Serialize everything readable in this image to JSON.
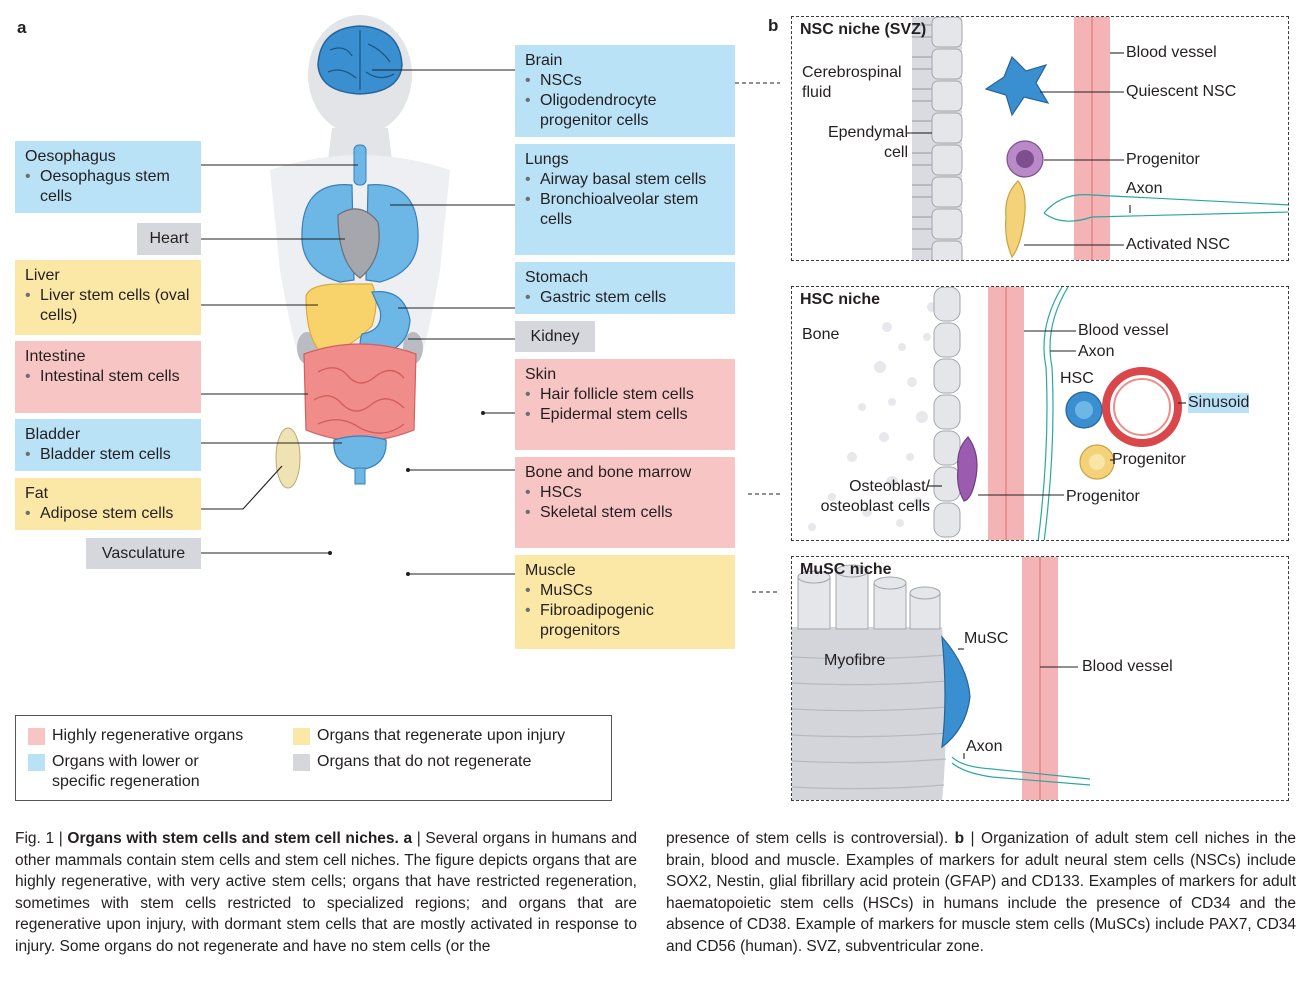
{
  "panel_a_label": "a",
  "panel_b_label": "b",
  "colors": {
    "highly_regenerative": "#f7c5c4",
    "lower_regeneration": "#b9e2f7",
    "regenerate_upon_injury": "#fbe7a6",
    "do_not_regenerate": "#d6d7dd"
  },
  "organs": {
    "oesophagus": {
      "title": "Oesophagus",
      "items": [
        "Oesophagus stem cells"
      ]
    },
    "heart": {
      "title": "Heart"
    },
    "liver": {
      "title": "Liver",
      "items": [
        "Liver stem cells (oval cells)"
      ]
    },
    "intestine": {
      "title": "Intestine",
      "items": [
        "Intestinal stem cells"
      ]
    },
    "bladder": {
      "title": "Bladder",
      "items": [
        "Bladder stem cells"
      ]
    },
    "fat": {
      "title": "Fat",
      "items": [
        "Adipose stem cells"
      ]
    },
    "vasculature": {
      "title": "Vasculature"
    },
    "brain": {
      "title": "Brain",
      "items": [
        "NSCs",
        "Oligodendrocyte progenitor cells"
      ]
    },
    "lungs": {
      "title": "Lungs",
      "items": [
        "Airway basal stem cells",
        "Bronchioalveolar stem cells"
      ]
    },
    "stomach": {
      "title": "Stomach",
      "items": [
        "Gastric stem cells"
      ]
    },
    "kidney": {
      "title": "Kidney"
    },
    "skin": {
      "title": "Skin",
      "items": [
        "Hair follicle stem cells",
        "Epidermal stem cells"
      ]
    },
    "bone": {
      "title": "Bone and bone marrow",
      "items": [
        "HSCs",
        "Skeletal stem cells"
      ]
    },
    "muscle": {
      "title": "Muscle",
      "items": [
        "MuSCs",
        "Fibroadipogenic progenitors"
      ]
    }
  },
  "legend": {
    "highly": "Highly regenerative organs",
    "injury": "Organs that regenerate upon injury",
    "lower": "Organs with lower or specific regeneration",
    "none": "Organs that do not regenerate"
  },
  "nsc_niche": {
    "title": "NSC niche (SVZ)",
    "csf": "Cerebrospinal fluid",
    "ependymal": "Ependymal cell",
    "blood_vessel": "Blood vessel",
    "quiescent": "Quiescent NSC",
    "progenitor": "Progenitor",
    "axon": "Axon",
    "activated": "Activated NSC"
  },
  "hsc_niche": {
    "title": "HSC niche",
    "bone": "Bone",
    "blood_vessel": "Blood vessel",
    "axon": "Axon",
    "hsc": "HSC",
    "sinusoid": "Sinusoid",
    "progenitor1": "Progenitor",
    "progenitor2": "Progenitor",
    "osteoblast": "Osteoblast/ osteoblast cells"
  },
  "musc_niche": {
    "title": "MuSC niche",
    "myofibre": "Myofibre",
    "musc": "MuSC",
    "blood_vessel": "Blood vessel",
    "axon": "Axon"
  },
  "caption": {
    "fig": "Fig. 1 | ",
    "bold": "Organs with stem cells and stem cell niches. a",
    "text_left": " | Several organs in humans and other mammals contain stem cells and stem cell niches. The figure depicts organs that are highly regenerative, with very active stem cells; organs that have restricted regeneration, sometimes with stem cells restricted to specialized regions; and organs that are regenerative upon injury, with dormant stem cells that are mostly activated in response to injury. Some organs do not regenerate and have no stem cells (or the",
    "text_right_1": "presence of stem cells is controversial). ",
    "bold_b": "b",
    "text_right_2": " | Organization of adult stem cell niches in the brain, blood and muscle. Examples of markers for adult neural stem cells (NSCs) include SOX2, Nestin, glial fibrillary acid protein (GFAP) and CD133. Examples of markers for adult haematopoietic stem cells (HSCs) in humans include the presence of CD34 and the absence of CD38. Example of markers for muscle stem cells (MuSCs) include PAX7, CD34 and CD56 (human). SVZ, subventricular zone."
  }
}
